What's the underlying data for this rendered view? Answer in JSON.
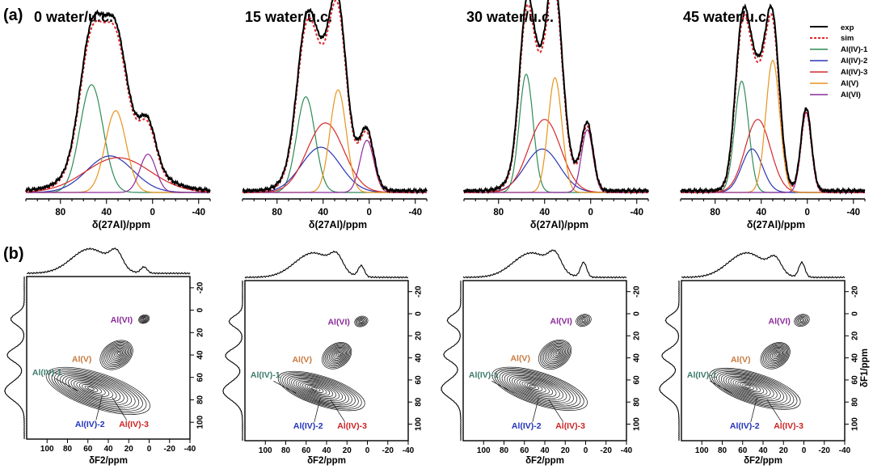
{
  "figure": {
    "panel_a_label": "(a)",
    "panel_b_label": "(b)",
    "colors": {
      "exp": "#000000",
      "sim": "#e0262b",
      "al_iv_1": "#2e8b57",
      "al_iv_2": "#2b35b5",
      "al_iv_3": "#d42a2a",
      "al_v": "#e8941e",
      "al_vi": "#8e2a9e",
      "label_al_vi": "#8a2a9a",
      "label_al_v": "#c87a3e",
      "label_al_iv_1": "#3c7a6a",
      "label_al_iv_2": "#2233bb",
      "label_al_iv_3": "#cc2222"
    }
  },
  "chart_data": [
    {
      "type": "line",
      "panel": "a",
      "title": "0 water/u.c.",
      "xlabel": "δ(27Al)/ppm",
      "xlim": [
        110,
        -50
      ],
      "xticks": [
        80,
        40,
        0,
        -40
      ],
      "legend": [
        "exp",
        "sim",
        "Al(IV)-1",
        "Al(IV)-2",
        "Al(IV)-3",
        "Al(V)",
        "Al(VI)"
      ],
      "series": [
        {
          "name": "Al(IV)-1",
          "center": 53,
          "height": 0.62,
          "width": 10
        },
        {
          "name": "Al(IV)-2",
          "center": 37,
          "height": 0.21,
          "width": 20
        },
        {
          "name": "Al(IV)-3",
          "center": 30,
          "height": 0.2,
          "width": 28
        },
        {
          "name": "Al(V)",
          "center": 32,
          "height": 0.47,
          "width": 9
        },
        {
          "name": "Al(VI)",
          "center": 4,
          "height": 0.22,
          "width": 7
        }
      ]
    },
    {
      "type": "line",
      "panel": "a",
      "title": "15 water/u.c.",
      "xlabel": "δ(27Al)/ppm",
      "xlim": [
        110,
        -50
      ],
      "xticks": [
        80,
        40,
        0,
        -40
      ],
      "series": [
        {
          "name": "Al(IV)-1",
          "center": 55,
          "height": 0.55,
          "width": 8
        },
        {
          "name": "Al(IV)-2",
          "center": 42,
          "height": 0.26,
          "width": 17
        },
        {
          "name": "Al(IV)-3",
          "center": 38,
          "height": 0.4,
          "width": 16
        },
        {
          "name": "Al(V)",
          "center": 27,
          "height": 0.59,
          "width": 7
        },
        {
          "name": "Al(VI)",
          "center": 2,
          "height": 0.3,
          "width": 6
        }
      ]
    },
    {
      "type": "line",
      "panel": "a",
      "title": "30 water/u.c.",
      "xlabel": "δ(27Al)/ppm",
      "xlim": [
        110,
        -50
      ],
      "xticks": [
        80,
        40,
        0,
        -40
      ],
      "series": [
        {
          "name": "Al(IV)-1",
          "center": 56,
          "height": 0.68,
          "width": 6
        },
        {
          "name": "Al(IV)-2",
          "center": 42,
          "height": 0.25,
          "width": 15
        },
        {
          "name": "Al(IV)-3",
          "center": 40,
          "height": 0.42,
          "width": 14
        },
        {
          "name": "Al(V)",
          "center": 31,
          "height": 0.66,
          "width": 6
        },
        {
          "name": "Al(VI)",
          "center": 3,
          "height": 0.36,
          "width": 5
        }
      ]
    },
    {
      "type": "line",
      "panel": "a",
      "title": "45 water/u.c.",
      "xlabel": "δ(27Al)/ppm",
      "xlim": [
        110,
        -50
      ],
      "xticks": [
        80,
        40,
        0,
        -40
      ],
      "series": [
        {
          "name": "Al(IV)-1",
          "center": 57,
          "height": 0.64,
          "width": 6
        },
        {
          "name": "Al(IV)-2",
          "center": 48,
          "height": 0.25,
          "width": 9
        },
        {
          "name": "Al(IV)-3",
          "center": 43,
          "height": 0.42,
          "width": 11
        },
        {
          "name": "Al(V)",
          "center": 30,
          "height": 0.76,
          "width": 6
        },
        {
          "name": "Al(VI)",
          "center": 1,
          "height": 0.46,
          "width": 4.5
        }
      ]
    },
    {
      "type": "contour",
      "panel": "b",
      "xlabel": "δF2/ppm",
      "ylabel": "δF1/ppm",
      "xlim": [
        120,
        -40
      ],
      "ylim": [
        -30,
        115
      ],
      "xticks": [
        100,
        80,
        60,
        40,
        20,
        0,
        -20,
        -40
      ],
      "yticks": [
        -20,
        0,
        20,
        40,
        60,
        80,
        100
      ],
      "peak_labels": [
        "Al(VI)",
        "Al(V)",
        "Al(IV)-1",
        "Al(IV)-2",
        "Al(IV)-3"
      ],
      "panels": [
        {
          "water": 0,
          "VI": {
            "x": 5,
            "y": 8,
            "s": 0.25
          },
          "V": {
            "x": 32,
            "y": 40,
            "s": 1.0
          },
          "IV": {
            "x": 50,
            "y": 72,
            "s": 1.2
          }
        },
        {
          "water": 15,
          "VI": {
            "x": 6,
            "y": 7,
            "s": 0.45
          },
          "V": {
            "x": 30,
            "y": 38,
            "s": 0.9
          },
          "IV": {
            "x": 45,
            "y": 70,
            "s": 1.0
          }
        },
        {
          "water": 30,
          "VI": {
            "x": 2,
            "y": 6,
            "s": 0.6
          },
          "V": {
            "x": 30,
            "y": 37,
            "s": 1.0
          },
          "IV": {
            "x": 45,
            "y": 68,
            "s": 1.1
          }
        },
        {
          "water": 45,
          "VI": {
            "x": 2,
            "y": 6,
            "s": 0.6
          },
          "V": {
            "x": 28,
            "y": 38,
            "s": 0.9
          },
          "IV": {
            "x": 48,
            "y": 68,
            "s": 1.05
          }
        }
      ]
    }
  ]
}
